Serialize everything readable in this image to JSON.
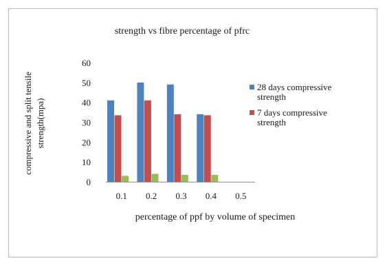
{
  "chart_data": {
    "type": "bar",
    "title": "strength vs fibre percentage of pfrc",
    "xlabel": "percentage of ppf by volume of specimen",
    "ylabel_lines": [
      "compressive and split tensile",
      "strength(mpa)"
    ],
    "categories": [
      "0.1",
      "0.2",
      "0.3",
      "0.4",
      "0.5"
    ],
    "ylim": [
      0,
      60
    ],
    "yticks": [
      "0",
      "10",
      "20",
      "30",
      "40",
      "50",
      "60"
    ],
    "series": [
      {
        "name": "28 days compressive strength",
        "legend_lines": [
          "28 days compressive",
          "strength"
        ],
        "color": "#4f81bd",
        "values": [
          41,
          50,
          49,
          34,
          0
        ]
      },
      {
        "name": "7 days compressive strength",
        "legend_lines": [
          "7 days compressive",
          "strength"
        ],
        "color": "#c0504d",
        "values": [
          33.5,
          41,
          34,
          33.5,
          0
        ]
      },
      {
        "name": "",
        "color": "#9bbb59",
        "values": [
          3,
          4,
          3.5,
          3.5,
          0
        ]
      }
    ],
    "grid": false,
    "legend_position": "right"
  }
}
